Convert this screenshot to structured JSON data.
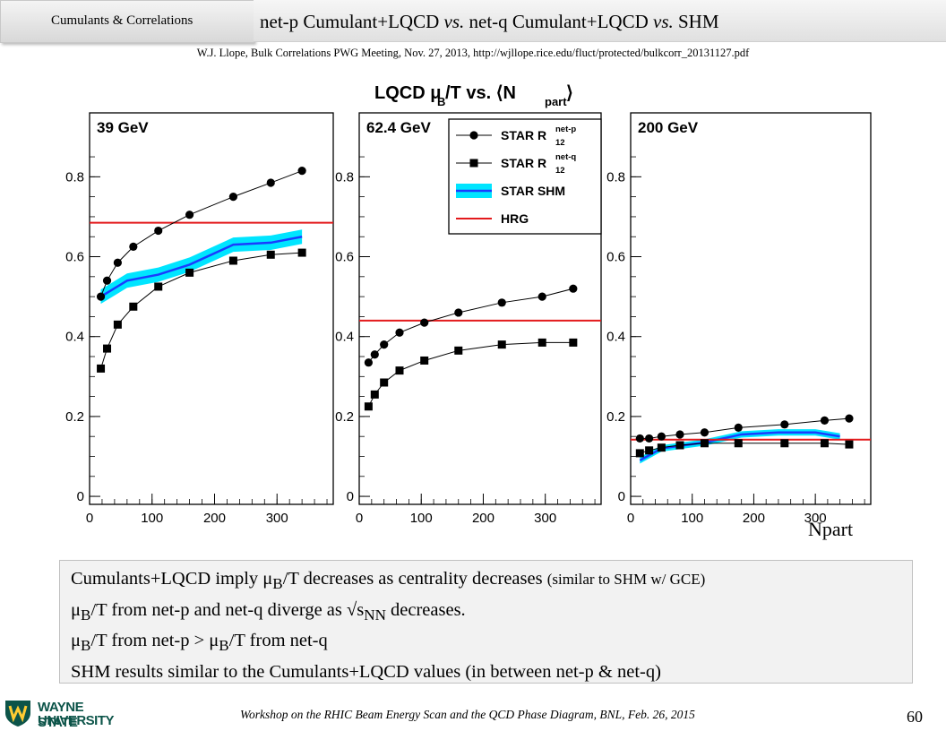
{
  "header": {
    "section": "Cumulants & Correlations",
    "title_parts": [
      "net-p Cumulant+LQCD ",
      "vs.",
      " net-q Cumulant+LQCD ",
      "vs.",
      " SHM"
    ],
    "citation": "W.J. Llope, Bulk Correlations PWG Meeting, Nov. 27, 2013, http://wjllope.rice.edu/fluct/protected/bulkcorr_20131127.pdf"
  },
  "chart_data": {
    "type": "line",
    "title_main": "LQCD μ",
    "title_sub": "B",
    "title_tail": "/T vs. ⟨N",
    "title_sub2": "part",
    "title_close": "⟩",
    "xlabel": "Npart",
    "xlim": [
      0,
      390
    ],
    "ylim": [
      -0.02,
      0.96
    ],
    "xticks": [
      0,
      100,
      200,
      300
    ],
    "yticks": [
      0,
      0.2,
      0.4,
      0.6,
      0.8
    ],
    "ytick_labels": [
      "0",
      "0.2",
      "0.4",
      "0.6",
      "0.8"
    ],
    "legend": {
      "placement": "top-right of middle panel",
      "entries": [
        {
          "label": "STAR R",
          "sup": "net-p",
          "sub": "12",
          "marker": "circle"
        },
        {
          "label": "STAR R",
          "sup": "net-q",
          "sub": "12",
          "marker": "square"
        },
        {
          "label": "STAR SHM",
          "sup": "",
          "sub": "",
          "marker": "band"
        },
        {
          "label": "HRG",
          "sup": "",
          "sub": "",
          "marker": "redline"
        }
      ]
    },
    "colors": {
      "hrg": "#e31a1c",
      "shm_band": "#00e5ff",
      "shm_line": "#1a3cff",
      "markers": "#000000"
    },
    "panels": [
      {
        "label": "39 GeV",
        "hrg": 0.685,
        "net_p": {
          "x": [
            18,
            28,
            45,
            70,
            110,
            160,
            230,
            290,
            340
          ],
          "y": [
            0.5,
            0.54,
            0.585,
            0.625,
            0.665,
            0.705,
            0.75,
            0.785,
            0.815
          ]
        },
        "net_q": {
          "x": [
            18,
            28,
            45,
            70,
            110,
            160,
            230,
            290,
            340
          ],
          "y": [
            0.32,
            0.37,
            0.43,
            0.475,
            0.525,
            0.56,
            0.59,
            0.605,
            0.61
          ]
        },
        "shm": {
          "x": [
            18,
            60,
            110,
            160,
            230,
            290,
            340
          ],
          "y": [
            0.5,
            0.54,
            0.555,
            0.58,
            0.63,
            0.635,
            0.65
          ],
          "err": 0.018
        }
      },
      {
        "label": "62.4 GeV",
        "hrg": 0.44,
        "net_p": {
          "x": [
            15,
            25,
            40,
            65,
            105,
            160,
            230,
            295,
            345
          ],
          "y": [
            0.335,
            0.355,
            0.38,
            0.41,
            0.435,
            0.46,
            0.485,
            0.5,
            0.52
          ]
        },
        "net_q": {
          "x": [
            15,
            25,
            40,
            65,
            105,
            160,
            230,
            295,
            345
          ],
          "y": [
            0.225,
            0.255,
            0.285,
            0.315,
            0.34,
            0.365,
            0.38,
            0.385,
            0.385
          ]
        },
        "shm": null
      },
      {
        "label": "200 GeV",
        "hrg": 0.142,
        "net_p": {
          "x": [
            15,
            30,
            50,
            80,
            120,
            175,
            250,
            315,
            355
          ],
          "y": [
            0.145,
            0.145,
            0.15,
            0.155,
            0.16,
            0.172,
            0.18,
            0.19,
            0.195
          ]
        },
        "net_q": {
          "x": [
            15,
            30,
            50,
            80,
            120,
            175,
            250,
            315,
            355
          ],
          "y": [
            0.108,
            0.115,
            0.122,
            0.128,
            0.133,
            0.133,
            0.133,
            0.133,
            0.13
          ]
        },
        "shm": {
          "x": [
            15,
            50,
            120,
            180,
            240,
            300,
            340
          ],
          "y": [
            0.09,
            0.12,
            0.135,
            0.155,
            0.16,
            0.16,
            0.15
          ],
          "err": 0.008
        }
      }
    ]
  },
  "summary": {
    "line1_main": "Cumulants+LQCD imply μ",
    "line1_sub": "B",
    "line1_mid": "/T decreases as centrality decreases ",
    "line1_small": "(similar to SHM w/ GCE)",
    "line2_a": "μ",
    "line2_sub": "B",
    "line2_b": "/T from net-p and net-q diverge as √s",
    "line2_sub2": "NN",
    "line2_c": " decreases.",
    "line3_a": "μ",
    "line3_sub": "B",
    "line3_b": "/T from net-p > μ",
    "line3_sub2": "B",
    "line3_c": "/T from net-q",
    "line4": "SHM results similar to the Cumulants+LQCD values (in between net-p & net-q)"
  },
  "footer": {
    "logo_line1": "WAYNE STATE",
    "logo_line2": "UNIVERSITY",
    "text": "Workshop on the RHIC Beam Energy Scan and the QCD Phase Diagram, BNL, Feb. 26, 2015",
    "page": "60"
  }
}
